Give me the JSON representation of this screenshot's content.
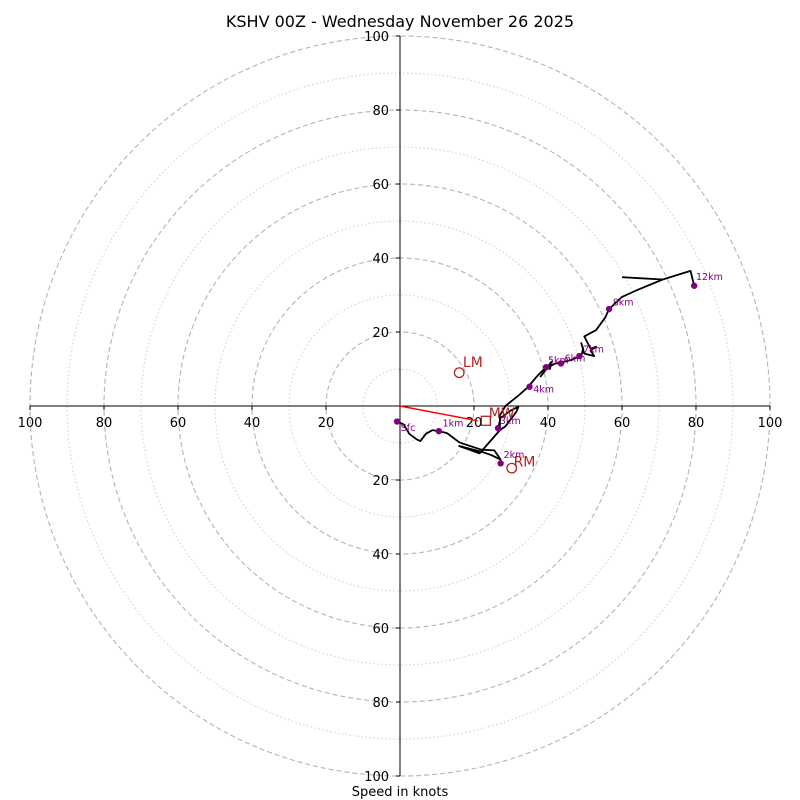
{
  "chart_data": {
    "type": "hodograph",
    "title": "KSHV 00Z - Wednesday November 26 2025",
    "xlabel": "Speed in knots",
    "units": "knots",
    "ring_step": 20,
    "ring_max": 100,
    "xlim": [
      -100,
      100
    ],
    "ylim": [
      -100,
      100
    ],
    "tick_labels": [
      {
        "value": -100,
        "label": "100"
      },
      {
        "value": -80,
        "label": "80"
      },
      {
        "value": -60,
        "label": "60"
      },
      {
        "value": -40,
        "label": "40"
      },
      {
        "value": -20,
        "label": "20"
      },
      {
        "value": 20,
        "label": "20"
      },
      {
        "value": 40,
        "label": "40"
      },
      {
        "value": 60,
        "label": "60"
      },
      {
        "value": 80,
        "label": "80"
      },
      {
        "value": 100,
        "label": "100"
      }
    ],
    "hodograph_trace": [
      [
        -0.8,
        -4.2
      ],
      [
        1,
        -5
      ],
      [
        2.5,
        -7.5
      ],
      [
        4.5,
        -9
      ],
      [
        5.5,
        -9.5
      ],
      [
        7,
        -7.5
      ],
      [
        8.8,
        -6.5
      ],
      [
        10.5,
        -6.8
      ],
      [
        12.2,
        -7.2
      ],
      [
        12.8,
        -7.4
      ],
      [
        16,
        -9.8
      ],
      [
        19.5,
        -11
      ],
      [
        22,
        -11.8
      ],
      [
        25.5,
        -12
      ],
      [
        27.2,
        -14.5
      ],
      [
        24.5,
        -13.2
      ],
      [
        22.5,
        -12.5
      ],
      [
        16,
        -10.8
      ],
      [
        21.5,
        -12.8
      ],
      [
        27,
        -6.5
      ],
      [
        28.5,
        -5.5
      ],
      [
        30,
        -3.5
      ],
      [
        31.5,
        -1.5
      ],
      [
        32,
        -0.2
      ],
      [
        30,
        -1.2
      ],
      [
        27.2,
        -3.2
      ],
      [
        26.5,
        -6
      ],
      [
        27,
        -5.5
      ],
      [
        27,
        -2.5
      ],
      [
        28.5,
        0
      ],
      [
        32,
        2.8
      ],
      [
        34.5,
        5
      ],
      [
        37,
        8
      ],
      [
        39.5,
        10.5
      ],
      [
        40.5,
        10
      ],
      [
        41,
        12
      ],
      [
        38,
        8
      ],
      [
        40,
        10.5
      ],
      [
        42,
        11.5
      ],
      [
        43,
        11.5
      ],
      [
        44.5,
        12
      ],
      [
        46.5,
        12.5
      ],
      [
        48,
        13.2
      ],
      [
        49,
        13.5
      ],
      [
        49.5,
        15.5
      ],
      [
        49,
        17
      ],
      [
        49.8,
        14.2
      ],
      [
        50.5,
        14
      ],
      [
        52.5,
        13.5
      ],
      [
        51.5,
        15
      ],
      [
        53,
        16
      ],
      [
        51.5,
        15.5
      ],
      [
        49.8,
        18.8
      ],
      [
        53,
        20.5
      ],
      [
        55.5,
        24
      ],
      [
        56.5,
        26.2
      ],
      [
        60,
        29.5
      ],
      [
        64.5,
        31.5
      ],
      [
        71,
        34.2
      ],
      [
        78.5,
        36.5
      ],
      [
        79.5,
        32.5
      ],
      [
        78.5,
        36.5
      ],
      [
        71,
        34.2
      ],
      [
        60,
        34.8
      ]
    ],
    "height_markers": [
      {
        "label": "Sfc",
        "u": -0.8,
        "v": -4.2,
        "label_du": 1,
        "label_dv": -2.5
      },
      {
        "label": "1km",
        "u": 10.5,
        "v": -6.8,
        "label_du": 1,
        "label_dv": 1.2
      },
      {
        "label": "2km",
        "u": 27.2,
        "v": -15.5,
        "label_du": 0.8,
        "label_dv": 1.5
      },
      {
        "label": "3km",
        "u": 26.5,
        "v": -6,
        "label_du": 0.5,
        "label_dv": 1.2
      },
      {
        "label": "4km",
        "u": 35,
        "v": 5.2,
        "label_du": 1,
        "label_dv": -1.5
      },
      {
        "label": "5km",
        "u": 39.5,
        "v": 10.5,
        "label_du": 0.5,
        "label_dv": 1
      },
      {
        "label": "6km",
        "u": 43.5,
        "v": 11.5,
        "label_du": 1,
        "label_dv": 0.5
      },
      {
        "label": "7km",
        "u": 48.5,
        "v": 13.5,
        "label_du": 1,
        "label_dv": 1
      },
      {
        "label": "8km",
        "u": 56.5,
        "v": 26.2,
        "label_du": 1,
        "label_dv": 1
      },
      {
        "label": "12km",
        "u": 79.5,
        "v": 32.5,
        "label_du": 0.5,
        "label_dv": 1.5
      }
    ],
    "storm_motion": [
      {
        "label": "LM",
        "u": 16,
        "v": 9,
        "label_du": 1,
        "label_dv": 1.5
      },
      {
        "label": "RM",
        "u": 30.2,
        "v": -16.8,
        "label_du": 0.5,
        "label_dv": 0.5
      }
    ],
    "mean_wind": {
      "label": "MW",
      "u": 23.2,
      "v": -4,
      "label_du": 0.8,
      "label_dv": 0.8
    },
    "shear_vector": {
      "from": [
        0,
        0
      ],
      "to": [
        21,
        -4
      ]
    }
  },
  "colors": {
    "trace": "#000000",
    "height_marker": "#800080",
    "storm_motion": "#b22222",
    "shear_vector": "#ff0000",
    "ring_major": "#b4b4b4",
    "ring_minor": "#cfcfcf",
    "axis": "#000000"
  }
}
